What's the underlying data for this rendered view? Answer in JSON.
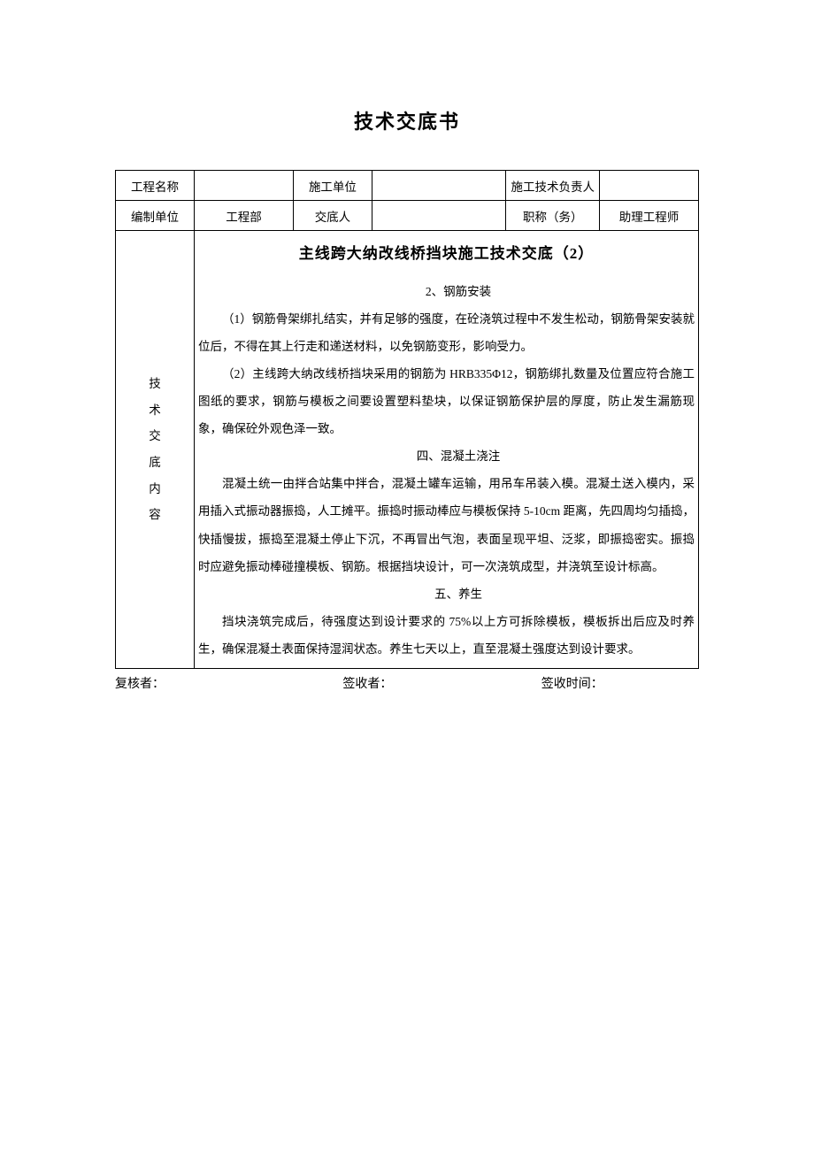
{
  "page_title": "技术交底书",
  "header": {
    "row1": {
      "label1": "工程名称",
      "value1": "",
      "label2": "施工单位",
      "value2": "",
      "label3": "施工技术负责人",
      "value3": ""
    },
    "row2": {
      "label1": "编制单位",
      "value1": "工程部",
      "label2": "交底人",
      "value2": "",
      "label3": "职称（务）",
      "value3": "助理工程师"
    }
  },
  "content": {
    "side_label_chars": [
      "技",
      "术",
      "交",
      "底",
      "内",
      "容"
    ],
    "sub_title": "主线跨大纳改线桥挡块施工技术交底（2）",
    "section2_title": "2、钢筋安装",
    "p2_1": "（1）钢筋骨架绑扎结实，并有足够的强度，在砼浇筑过程中不发生松动，钢筋骨架安装就位后，不得在其上行走和递送材料，以免钢筋变形，影响受力。",
    "p2_2": "（2）主线跨大纳改线桥挡块采用的钢筋为 HRB335Φ12，钢筋绑扎数量及位置应符合施工图纸的要求，钢筋与模板之间要设置塑料垫块，以保证钢筋保护层的厚度，防止发生漏筋现象，确保砼外观色泽一致。",
    "section4_title": "四、混凝土浇注",
    "p4": "混凝土统一由拌合站集中拌合，混凝土罐车运输，用吊车吊装入模。混凝土送入模内，采用插入式振动器振捣，人工摊平。振捣时振动棒应与模板保持 5-10cm 距离，先四周均匀插捣，快插慢拔，振捣至混凝土停止下沉，不再冒出气泡，表面呈现平坦、泛浆，即振捣密实。振捣时应避免振动棒碰撞模板、钢筋。根据挡块设计，可一次浇筑成型，并浇筑至设计标高。",
    "section5_title": "五、养生",
    "p5": "挡块浇筑完成后，待强度达到设计要求的 75%以上方可拆除模板，模板拆出后应及时养生，确保混凝土表面保持湿润状态。养生七天以上，直至混凝土强度达到设计要求。"
  },
  "footer": {
    "reviewer": "复核者：",
    "receiver": "签收者：",
    "time": "签收时间："
  },
  "style": {
    "font_family": "SimSun",
    "text_color": "#000000",
    "border_color": "#000000",
    "background": "#ffffff",
    "title_fontsize": 22,
    "body_fontsize": 13.5,
    "subtitle_fontsize": 17,
    "line_height": 2.3
  }
}
